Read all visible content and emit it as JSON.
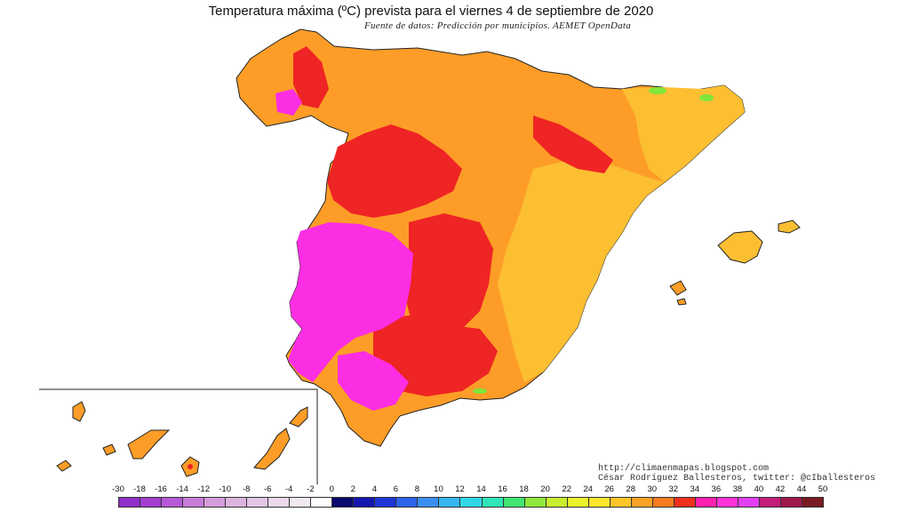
{
  "title": "Temperatura máxima (ºC) prevista para el viernes 4 de septiembre de 2020",
  "source": "Fuente de datos: Predicción por municipios. AEMET OpenData",
  "credits": {
    "blog": "http://climaenmapas.blogspot.com",
    "author": "César Rodríguez Ballesteros, twitter: @cIballesteros"
  },
  "legend": {
    "ticks": [
      "-30",
      "-18",
      "-16",
      "-14",
      "-12",
      "-10",
      "-8",
      "-6",
      "-4",
      "-2",
      "0",
      "2",
      "4",
      "6",
      "8",
      "10",
      "12",
      "14",
      "16",
      "18",
      "20",
      "22",
      "24",
      "26",
      "28",
      "30",
      "32",
      "34",
      "36",
      "38",
      "40",
      "42",
      "44",
      "50"
    ],
    "colors": [
      "#8e2fc8",
      "#a23fd0",
      "#b659d6",
      "#c77cd9",
      "#d59cdc",
      "#dcb3df",
      "#e3c6e5",
      "#ebd8ec",
      "#f1e8f2",
      "#ffffff",
      "#0a0a6e",
      "#1515b0",
      "#1f35d8",
      "#2e63ea",
      "#3a8ef2",
      "#37b6f0",
      "#2fd8e6",
      "#2ee6b8",
      "#40e670",
      "#8fe83a",
      "#c8ee30",
      "#e9f22a",
      "#fde52e",
      "#fcc52a",
      "#f9a225",
      "#f57c1f",
      "#f0301c",
      "#ff22b0",
      "#ff33d8",
      "#e23ff2",
      "#c21e7a",
      "#a0184c",
      "#7a1a22"
    ]
  },
  "map_colors": {
    "orange": "#fd9d27",
    "light_orange": "#fcbf32",
    "red": "#ef2424",
    "magenta": "#fb2ee3",
    "green": "#7fe63a"
  }
}
